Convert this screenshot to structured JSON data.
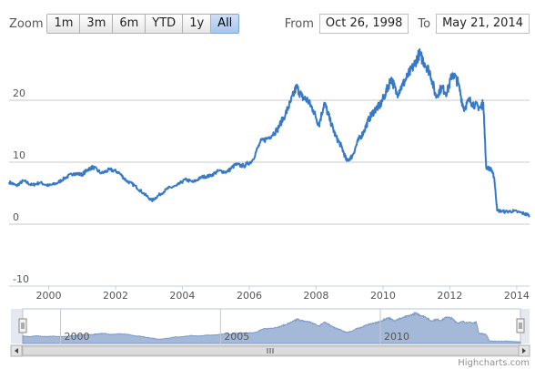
{
  "range_selector": {
    "zoom_label": "Zoom",
    "buttons": [
      "1m",
      "3m",
      "6m",
      "YTD",
      "1y",
      "All"
    ],
    "selected": "All",
    "from_label": "From",
    "from_value": "Oct 26, 1998",
    "to_label": "To",
    "to_value": "May 21, 2014"
  },
  "credit": "Highcharts.com",
  "colors": {
    "series": "#3679c9",
    "navigator_fill": "#a4b9d8",
    "navigator_line": "#7d9bc6",
    "grid": "#c8c8c8"
  },
  "chart_data": {
    "type": "line",
    "title": "",
    "xlabel": "",
    "ylabel": "",
    "x_range": [
      "1998-10-26",
      "2014-05-21"
    ],
    "ylim": [
      -10,
      30
    ],
    "y_ticks": [
      -10,
      0,
      10,
      20
    ],
    "x_ticks": [
      "2000",
      "2002",
      "2004",
      "2006",
      "2008",
      "2010",
      "2012",
      "2014"
    ],
    "grid": true,
    "legend": "none",
    "series": [
      {
        "values_note": "",
        "points": [
          [
            "1998-10-26",
            6.8
          ],
          [
            "1999-01-15",
            6.2
          ],
          [
            "1999-04-01",
            7.0
          ],
          [
            "1999-07-01",
            6.3
          ],
          [
            "1999-10-01",
            6.7
          ],
          [
            "2000-01-01",
            6.2
          ],
          [
            "2000-04-01",
            6.6
          ],
          [
            "2000-07-01",
            7.5
          ],
          [
            "2000-10-01",
            8.2
          ],
          [
            "2001-01-01",
            8.0
          ],
          [
            "2001-03-01",
            8.8
          ],
          [
            "2001-05-01",
            9.2
          ],
          [
            "2001-08-01",
            8.2
          ],
          [
            "2001-11-01",
            8.8
          ],
          [
            "2002-02-01",
            8.4
          ],
          [
            "2002-05-01",
            7.0
          ],
          [
            "2002-08-01",
            6.2
          ],
          [
            "2002-11-01",
            5.0
          ],
          [
            "2003-02-01",
            3.8
          ],
          [
            "2003-05-01",
            4.8
          ],
          [
            "2003-08-01",
            5.8
          ],
          [
            "2003-11-01",
            6.2
          ],
          [
            "2004-02-01",
            7.2
          ],
          [
            "2004-05-01",
            6.8
          ],
          [
            "2004-08-01",
            7.6
          ],
          [
            "2004-11-01",
            7.8
          ],
          [
            "2005-02-01",
            8.6
          ],
          [
            "2005-05-01",
            8.4
          ],
          [
            "2005-08-01",
            9.6
          ],
          [
            "2005-11-01",
            9.4
          ],
          [
            "2006-02-01",
            10.2
          ],
          [
            "2006-05-01",
            13.2
          ],
          [
            "2006-08-01",
            14.0
          ],
          [
            "2006-11-01",
            15.2
          ],
          [
            "2007-02-01",
            17.8
          ],
          [
            "2007-04-01",
            19.8
          ],
          [
            "2007-06-01",
            22.2
          ],
          [
            "2007-08-01",
            20.5
          ],
          [
            "2007-10-01",
            20.0
          ],
          [
            "2007-12-01",
            18.4
          ],
          [
            "2008-02-01",
            16.0
          ],
          [
            "2008-04-01",
            19.6
          ],
          [
            "2008-06-01",
            16.8
          ],
          [
            "2008-08-01",
            14.2
          ],
          [
            "2008-10-01",
            12.6
          ],
          [
            "2008-12-01",
            10.2
          ],
          [
            "2009-02-01",
            11.0
          ],
          [
            "2009-04-01",
            13.4
          ],
          [
            "2009-06-01",
            14.8
          ],
          [
            "2009-08-01",
            17.0
          ],
          [
            "2009-10-01",
            18.4
          ],
          [
            "2009-12-01",
            19.2
          ],
          [
            "2010-02-01",
            21.2
          ],
          [
            "2010-04-01",
            23.6
          ],
          [
            "2010-06-01",
            21.0
          ],
          [
            "2010-08-01",
            22.4
          ],
          [
            "2010-10-01",
            24.0
          ],
          [
            "2010-12-01",
            25.5
          ],
          [
            "2011-02-01",
            27.5
          ],
          [
            "2011-04-01",
            26.0
          ],
          [
            "2011-06-01",
            24.4
          ],
          [
            "2011-08-01",
            20.6
          ],
          [
            "2011-10-01",
            22.0
          ],
          [
            "2011-12-01",
            21.2
          ],
          [
            "2012-02-01",
            24.4
          ],
          [
            "2012-04-01",
            22.8
          ],
          [
            "2012-06-01",
            18.6
          ],
          [
            "2012-08-01",
            20.0
          ],
          [
            "2012-10-01",
            19.2
          ],
          [
            "2012-12-01",
            18.8
          ],
          [
            "2013-01-01",
            19.6
          ],
          [
            "2013-02-01",
            9.2
          ],
          [
            "2013-04-01",
            8.8
          ],
          [
            "2013-05-01",
            7.4
          ],
          [
            "2013-06-01",
            2.2
          ],
          [
            "2013-09-01",
            2.0
          ],
          [
            "2013-12-01",
            2.1
          ],
          [
            "2014-03-01",
            1.8
          ],
          [
            "2014-05-21",
            1.4
          ]
        ]
      }
    ],
    "navigator": {
      "x_ticks": [
        "2000",
        "2005",
        "2010"
      ]
    }
  }
}
